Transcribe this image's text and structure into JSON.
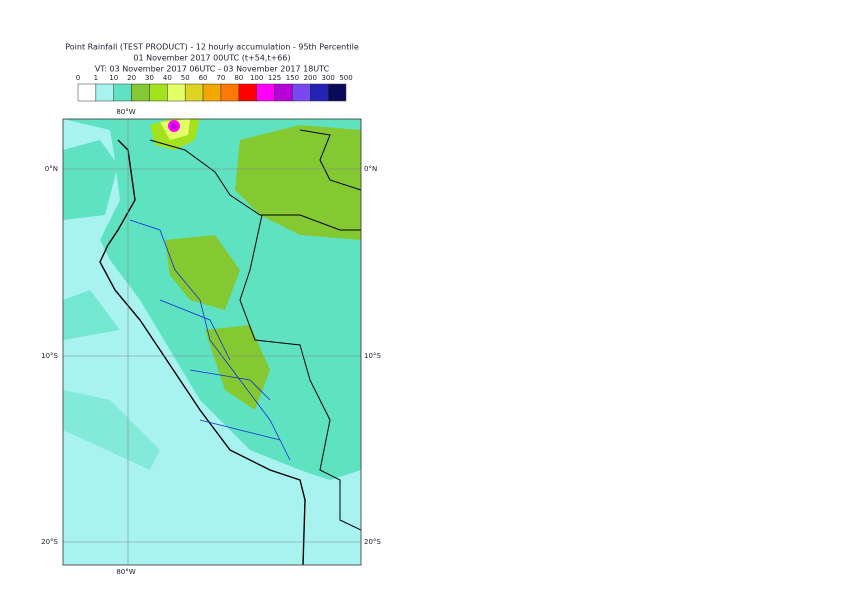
{
  "header": {
    "title": "Point Rainfall (TEST PRODUCT) - 12 hourly accumulation - 95th Percentile",
    "run": "01 November 2017 00UTC (t+54,t+66)",
    "valid": "VT: 03 November 2017 06UTC - 03 November 2017 18UTC"
  },
  "legend": {
    "thresholds": [
      0,
      1,
      10,
      20,
      30,
      40,
      50,
      60,
      70,
      80,
      100,
      125,
      150,
      200,
      300,
      500
    ],
    "colors": [
      "#ffffff",
      "#a8f2f0",
      "#5ee2c2",
      "#84c832",
      "#a4e21e",
      "#e4ff66",
      "#dcd41e",
      "#f2a800",
      "#ff7800",
      "#ff0000",
      "#ff00ff",
      "#b800d8",
      "#7a48f0",
      "#2222b4",
      "#0a0a5a"
    ]
  },
  "map": {
    "lon_labels": [
      "80°W"
    ],
    "lat_labels": [
      "0°N",
      "10°S",
      "20°S"
    ]
  }
}
